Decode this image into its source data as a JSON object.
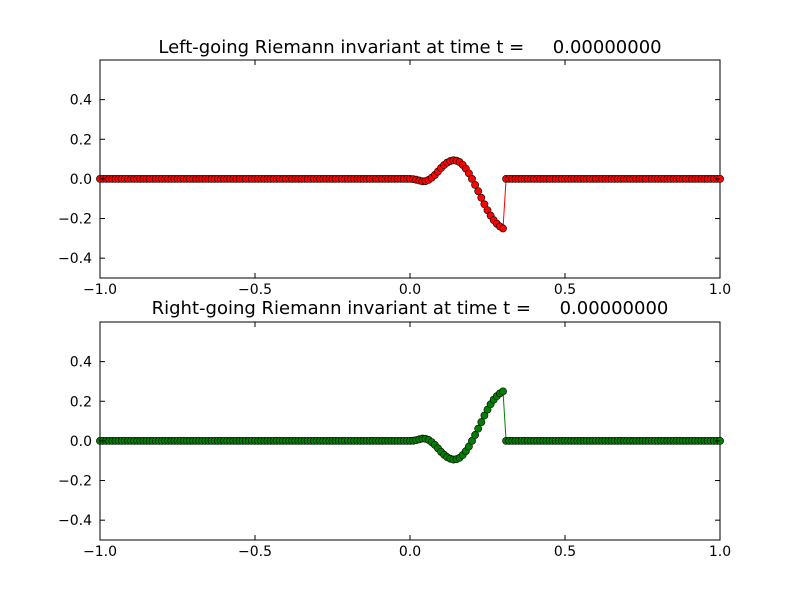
{
  "chart_data": [
    {
      "type": "line",
      "title": "Left-going Riemann invariant at time t =     0.00000000",
      "xlabel": "",
      "ylabel": "",
      "xlim": [
        -1.0,
        1.0
      ],
      "ylim": [
        -0.5,
        0.6
      ],
      "xticks": [
        "−1.0",
        "−0.5",
        "0.0",
        "0.5",
        "1.0"
      ],
      "yticks": [
        "−0.4",
        "−0.2",
        "0.0",
        "0.2",
        "0.4"
      ],
      "grid": false,
      "marker": "circle",
      "color": "#ff0000",
      "series": [
        {
          "x": [
            -1.0,
            -0.99,
            -0.98,
            -0.97,
            -0.96,
            -0.95,
            -0.94,
            -0.93,
            -0.92,
            -0.91,
            -0.9,
            -0.89,
            -0.88,
            -0.87,
            -0.86,
            -0.85,
            -0.84,
            -0.83,
            -0.82,
            -0.81,
            -0.8,
            -0.79,
            -0.78,
            -0.77,
            -0.76,
            -0.75,
            -0.74,
            -0.73,
            -0.72,
            -0.71,
            -0.7,
            -0.69,
            -0.68,
            -0.67,
            -0.66,
            -0.65,
            -0.64,
            -0.63,
            -0.62,
            -0.61,
            -0.6,
            -0.59,
            -0.58,
            -0.57,
            -0.56,
            -0.55,
            -0.54,
            -0.53,
            -0.52,
            -0.51,
            -0.5,
            -0.49,
            -0.48,
            -0.47,
            -0.46,
            -0.45,
            -0.44,
            -0.43,
            -0.42,
            -0.41,
            -0.4,
            -0.39,
            -0.38,
            -0.37,
            -0.36,
            -0.35,
            -0.34,
            -0.33,
            -0.32,
            -0.31,
            -0.3,
            -0.29,
            -0.28,
            -0.27,
            -0.26,
            -0.25,
            -0.24,
            -0.23,
            -0.22,
            -0.21,
            -0.2,
            -0.19,
            -0.18,
            -0.17,
            -0.16,
            -0.15,
            -0.14,
            -0.13,
            -0.12,
            -0.11,
            -0.1,
            -0.09,
            -0.08,
            -0.07,
            -0.06,
            -0.05,
            -0.04,
            -0.03,
            -0.02,
            -0.01,
            0.0,
            0.01,
            0.02,
            0.03,
            0.04,
            0.05,
            0.06,
            0.07,
            0.08,
            0.09,
            0.1,
            0.11,
            0.12,
            0.13,
            0.14,
            0.15,
            0.16,
            0.17,
            0.18,
            0.19,
            0.2,
            0.21,
            0.22,
            0.23,
            0.24,
            0.25,
            0.26,
            0.27,
            0.28,
            0.29,
            0.3,
            0.31,
            0.32,
            0.33,
            0.34,
            0.35,
            0.36,
            0.37,
            0.38,
            0.39,
            0.4,
            0.41,
            0.42,
            0.43,
            0.44,
            0.45,
            0.46,
            0.47,
            0.48,
            0.49,
            0.5,
            0.51,
            0.52,
            0.53,
            0.54,
            0.55,
            0.56,
            0.57,
            0.58,
            0.59,
            0.6,
            0.61,
            0.62,
            0.63,
            0.64,
            0.65,
            0.66,
            0.67,
            0.68,
            0.69,
            0.7,
            0.71,
            0.72,
            0.73,
            0.74,
            0.75,
            0.76,
            0.77,
            0.78,
            0.79,
            0.8,
            0.81,
            0.82,
            0.83,
            0.84,
            0.85,
            0.86,
            0.87,
            0.88,
            0.89,
            0.9,
            0.91,
            0.92,
            0.93,
            0.94,
            0.95,
            0.96,
            0.97,
            0.98,
            0.99,
            1.0
          ],
          "y": [
            0.0,
            0.0,
            0.0,
            0.0,
            0.0,
            0.0,
            0.0,
            0.0,
            0.0,
            0.0,
            0.0,
            0.0,
            0.0,
            0.0,
            0.0,
            0.0,
            0.0,
            0.0,
            0.0,
            0.0,
            0.0,
            0.0,
            0.0,
            0.0,
            0.0,
            0.0,
            0.0,
            0.0,
            0.0,
            0.0,
            0.0,
            0.0,
            0.0,
            0.0,
            0.0,
            0.0,
            0.0,
            0.0,
            0.0,
            0.0,
            0.0,
            0.0,
            0.0,
            0.0,
            0.0,
            0.0,
            0.0,
            0.0,
            0.0,
            0.0,
            0.0,
            0.0,
            0.0,
            0.0,
            0.0,
            0.0,
            0.0,
            0.0,
            0.0,
            0.0,
            0.0,
            0.0,
            0.0,
            0.0,
            0.0,
            0.0,
            0.0,
            0.0,
            0.0,
            0.0,
            0.0,
            0.0,
            0.0,
            0.0,
            0.0,
            0.0,
            0.0,
            0.0,
            0.0,
            0.0,
            0.0,
            0.0,
            0.0,
            0.0,
            0.0,
            0.0,
            0.0,
            0.0,
            0.0,
            0.0,
            0.0,
            0.0,
            0.0,
            0.0,
            0.0,
            0.0,
            0.0,
            0.0,
            0.0,
            0.0,
            0.0,
            -0.001,
            -0.004,
            -0.008,
            -0.012,
            -0.011,
            -0.005,
            0.006,
            0.02,
            0.037,
            0.055,
            0.07,
            0.082,
            0.09,
            0.094,
            0.092,
            0.085,
            0.071,
            0.052,
            0.028,
            0.0,
            -0.03,
            -0.062,
            -0.095,
            -0.128,
            -0.158,
            -0.185,
            -0.208,
            -0.226,
            -0.24,
            -0.25,
            0.0,
            0.0,
            0.0,
            0.0,
            0.0,
            0.0,
            0.0,
            0.0,
            0.0,
            0.0,
            0.0,
            0.0,
            0.0,
            0.0,
            0.0,
            0.0,
            0.0,
            0.0,
            0.0,
            0.0,
            0.0,
            0.0,
            0.0,
            0.0,
            0.0,
            0.0,
            0.0,
            0.0,
            0.0,
            0.0,
            0.0,
            0.0,
            0.0,
            0.0,
            0.0,
            0.0,
            0.0,
            0.0,
            0.0,
            0.0,
            0.0,
            0.0,
            0.0,
            0.0,
            0.0,
            0.0,
            0.0,
            0.0,
            0.0,
            0.0,
            0.0,
            0.0,
            0.0,
            0.0,
            0.0,
            0.0,
            0.0,
            0.0,
            0.0,
            0.0,
            0.0,
            0.0,
            0.0,
            0.0,
            0.0,
            0.0,
            0.0,
            0.0,
            0.0,
            0.0
          ]
        }
      ]
    },
    {
      "type": "line",
      "title": "Right-going Riemann invariant at time t =     0.00000000",
      "xlabel": "",
      "ylabel": "",
      "xlim": [
        -1.0,
        1.0
      ],
      "ylim": [
        -0.5,
        0.6
      ],
      "xticks": [
        "−1.0",
        "−0.5",
        "0.0",
        "0.5",
        "1.0"
      ],
      "yticks": [
        "−0.4",
        "−0.2",
        "0.0",
        "0.2",
        "0.4"
      ],
      "grid": false,
      "marker": "circle",
      "color": "#008000",
      "series": [
        {
          "x": [
            -1.0,
            -0.99,
            -0.98,
            -0.97,
            -0.96,
            -0.95,
            -0.94,
            -0.93,
            -0.92,
            -0.91,
            -0.9,
            -0.89,
            -0.88,
            -0.87,
            -0.86,
            -0.85,
            -0.84,
            -0.83,
            -0.82,
            -0.81,
            -0.8,
            -0.79,
            -0.78,
            -0.77,
            -0.76,
            -0.75,
            -0.74,
            -0.73,
            -0.72,
            -0.71,
            -0.7,
            -0.69,
            -0.68,
            -0.67,
            -0.66,
            -0.65,
            -0.64,
            -0.63,
            -0.62,
            -0.61,
            -0.6,
            -0.59,
            -0.58,
            -0.57,
            -0.56,
            -0.55,
            -0.54,
            -0.53,
            -0.52,
            -0.51,
            -0.5,
            -0.49,
            -0.48,
            -0.47,
            -0.46,
            -0.45,
            -0.44,
            -0.43,
            -0.42,
            -0.41,
            -0.4,
            -0.39,
            -0.38,
            -0.37,
            -0.36,
            -0.35,
            -0.34,
            -0.33,
            -0.32,
            -0.31,
            -0.3,
            -0.29,
            -0.28,
            -0.27,
            -0.26,
            -0.25,
            -0.24,
            -0.23,
            -0.22,
            -0.21,
            -0.2,
            -0.19,
            -0.18,
            -0.17,
            -0.16,
            -0.15,
            -0.14,
            -0.13,
            -0.12,
            -0.11,
            -0.1,
            -0.09,
            -0.08,
            -0.07,
            -0.06,
            -0.05,
            -0.04,
            -0.03,
            -0.02,
            -0.01,
            0.0,
            0.01,
            0.02,
            0.03,
            0.04,
            0.05,
            0.06,
            0.07,
            0.08,
            0.09,
            0.1,
            0.11,
            0.12,
            0.13,
            0.14,
            0.15,
            0.16,
            0.17,
            0.18,
            0.19,
            0.2,
            0.21,
            0.22,
            0.23,
            0.24,
            0.25,
            0.26,
            0.27,
            0.28,
            0.29,
            0.3,
            0.31,
            0.32,
            0.33,
            0.34,
            0.35,
            0.36,
            0.37,
            0.38,
            0.39,
            0.4,
            0.41,
            0.42,
            0.43,
            0.44,
            0.45,
            0.46,
            0.47,
            0.48,
            0.49,
            0.5,
            0.51,
            0.52,
            0.53,
            0.54,
            0.55,
            0.56,
            0.57,
            0.58,
            0.59,
            0.6,
            0.61,
            0.62,
            0.63,
            0.64,
            0.65,
            0.66,
            0.67,
            0.68,
            0.69,
            0.7,
            0.71,
            0.72,
            0.73,
            0.74,
            0.75,
            0.76,
            0.77,
            0.78,
            0.79,
            0.8,
            0.81,
            0.82,
            0.83,
            0.84,
            0.85,
            0.86,
            0.87,
            0.88,
            0.89,
            0.9,
            0.91,
            0.92,
            0.93,
            0.94,
            0.95,
            0.96,
            0.97,
            0.98,
            0.99,
            1.0
          ],
          "y": [
            0.0,
            0.0,
            0.0,
            0.0,
            0.0,
            0.0,
            0.0,
            0.0,
            0.0,
            0.0,
            0.0,
            0.0,
            0.0,
            0.0,
            0.0,
            0.0,
            0.0,
            0.0,
            0.0,
            0.0,
            0.0,
            0.0,
            0.0,
            0.0,
            0.0,
            0.0,
            0.0,
            0.0,
            0.0,
            0.0,
            0.0,
            0.0,
            0.0,
            0.0,
            0.0,
            0.0,
            0.0,
            0.0,
            0.0,
            0.0,
            0.0,
            0.0,
            0.0,
            0.0,
            0.0,
            0.0,
            0.0,
            0.0,
            0.0,
            0.0,
            0.0,
            0.0,
            0.0,
            0.0,
            0.0,
            0.0,
            0.0,
            0.0,
            0.0,
            0.0,
            0.0,
            0.0,
            0.0,
            0.0,
            0.0,
            0.0,
            0.0,
            0.0,
            0.0,
            0.0,
            0.0,
            0.0,
            0.0,
            0.0,
            0.0,
            0.0,
            0.0,
            0.0,
            0.0,
            0.0,
            0.0,
            0.0,
            0.0,
            0.0,
            0.0,
            0.0,
            0.0,
            0.0,
            0.0,
            0.0,
            0.0,
            0.0,
            0.0,
            0.0,
            0.0,
            0.0,
            0.0,
            0.0,
            0.0,
            0.0,
            0.0,
            0.001,
            0.004,
            0.008,
            0.012,
            0.011,
            0.005,
            -0.006,
            -0.02,
            -0.037,
            -0.055,
            -0.07,
            -0.082,
            -0.09,
            -0.094,
            -0.092,
            -0.085,
            -0.071,
            -0.052,
            -0.028,
            0.0,
            0.03,
            0.062,
            0.095,
            0.128,
            0.158,
            0.185,
            0.208,
            0.226,
            0.24,
            0.25,
            0.0,
            0.0,
            0.0,
            0.0,
            0.0,
            0.0,
            0.0,
            0.0,
            0.0,
            0.0,
            0.0,
            0.0,
            0.0,
            0.0,
            0.0,
            0.0,
            0.0,
            0.0,
            0.0,
            0.0,
            0.0,
            0.0,
            0.0,
            0.0,
            0.0,
            0.0,
            0.0,
            0.0,
            0.0,
            0.0,
            0.0,
            0.0,
            0.0,
            0.0,
            0.0,
            0.0,
            0.0,
            0.0,
            0.0,
            0.0,
            0.0,
            0.0,
            0.0,
            0.0,
            0.0,
            0.0,
            0.0,
            0.0,
            0.0,
            0.0,
            0.0,
            0.0,
            0.0,
            0.0,
            0.0,
            0.0,
            0.0,
            0.0,
            0.0,
            0.0,
            0.0,
            0.0,
            0.0,
            0.0,
            0.0,
            0.0,
            0.0,
            0.0,
            0.0,
            0.0
          ]
        }
      ]
    }
  ]
}
